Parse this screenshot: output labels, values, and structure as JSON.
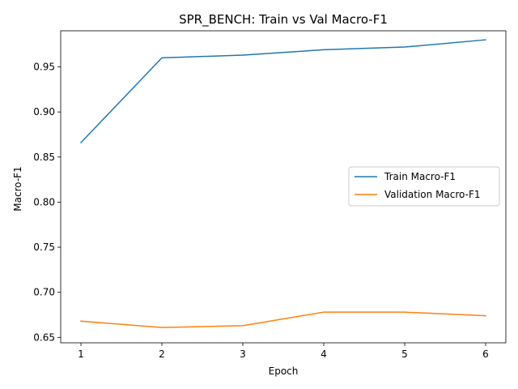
{
  "chart_data": {
    "type": "line",
    "title": "SPR_BENCH: Train vs Val Macro-F1",
    "xlabel": "Epoch",
    "ylabel": "Macro-F1",
    "x": [
      1,
      2,
      3,
      4,
      5,
      6
    ],
    "xlim": [
      0.75,
      6.25
    ],
    "ylim": [
      0.644,
      0.99
    ],
    "xticks": [
      1,
      2,
      3,
      4,
      5,
      6
    ],
    "yticks": [
      0.65,
      0.7,
      0.75,
      0.8,
      0.85,
      0.9,
      0.95
    ],
    "ytick_labels": [
      "0.65",
      "0.70",
      "0.75",
      "0.80",
      "0.85",
      "0.90",
      "0.95"
    ],
    "grid": false,
    "legend_position": "center-right",
    "series": [
      {
        "name": "Train Macro-F1",
        "color": "#1f77b4",
        "values": [
          0.866,
          0.96,
          0.963,
          0.969,
          0.972,
          0.98
        ]
      },
      {
        "name": "Validation Macro-F1",
        "color": "#ff7f0e",
        "values": [
          0.668,
          0.661,
          0.663,
          0.678,
          0.678,
          0.674
        ]
      }
    ]
  }
}
